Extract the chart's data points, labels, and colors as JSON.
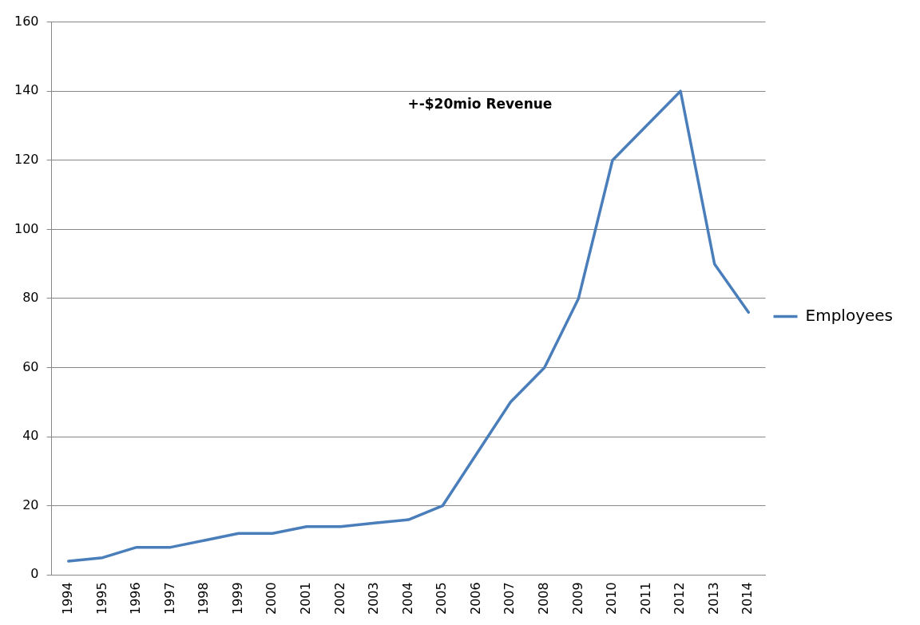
{
  "chart_data": {
    "type": "line",
    "categories": [
      "1994",
      "1995",
      "1996",
      "1997",
      "1998",
      "1999",
      "2000",
      "2001",
      "2002",
      "2003",
      "2004",
      "2005",
      "2006",
      "2007",
      "2008",
      "2009",
      "2010",
      "2011",
      "2012",
      "2013",
      "2014"
    ],
    "series": [
      {
        "name": "Employees",
        "color": "#4a7ebb",
        "values": [
          4,
          5,
          8,
          8,
          10,
          12,
          12,
          14,
          14,
          15,
          16,
          20,
          35,
          50,
          60,
          80,
          120,
          130,
          140,
          90,
          76
        ]
      }
    ],
    "ylim": [
      0,
      160
    ],
    "yticks": [
      0,
      20,
      40,
      60,
      80,
      100,
      120,
      140,
      160
    ],
    "grid": "y",
    "legend": "right",
    "marker": "none",
    "line_style": "solid",
    "annotations": [
      "+-$20mio Revenue"
    ]
  }
}
